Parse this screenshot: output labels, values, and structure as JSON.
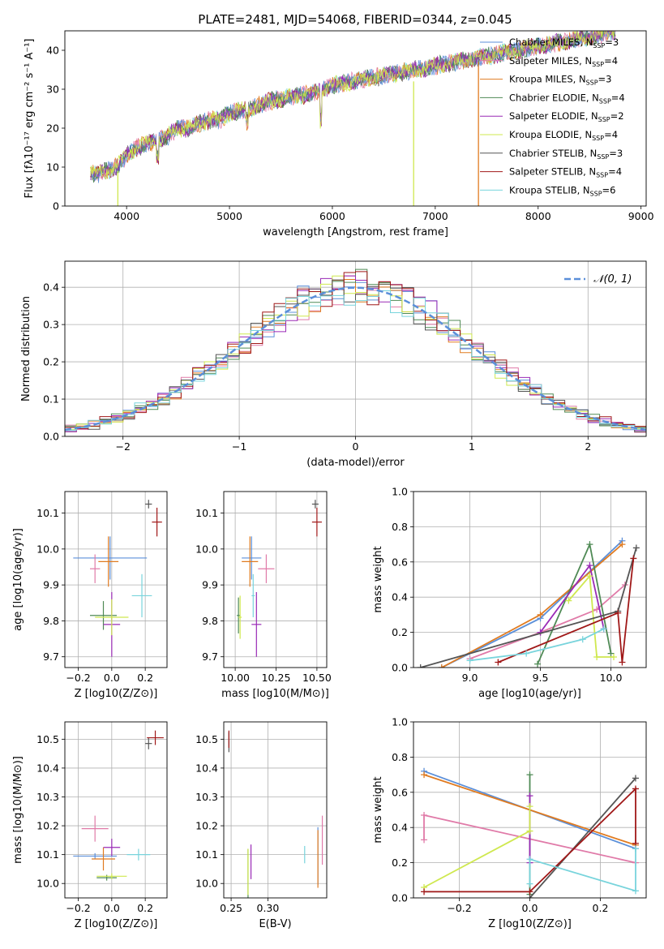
{
  "figure_title": "PLATE=2481, MJD=54068, FIBERID=0344, z=0.045",
  "colors": {
    "Chabrier MILES": "#5b8fd9",
    "Salpeter MILES": "#e07aa8",
    "Kroupa MILES": "#e07b20",
    "Chabrier ELODIE": "#4f8a55",
    "Salpeter ELODIE": "#9a2ab6",
    "Kroupa ELODIE": "#cfe84f",
    "Chabrier STELIB": "#555555",
    "Salpeter STELIB": "#a01818",
    "Kroupa STELIB": "#78d4dc"
  },
  "chart_data": [
    {
      "id": "spectrum",
      "type": "line",
      "xlabel": "wavelength [Angstrom, rest frame]",
      "ylabel": "Flux [fλ10⁻¹⁷ erg cm⁻² s⁻¹ A⁻¹]",
      "xlim": [
        3400,
        9050
      ],
      "ylim": [
        0,
        45
      ],
      "xticks": [
        4000,
        5000,
        6000,
        7000,
        8000,
        9000
      ],
      "yticks": [
        0,
        10,
        20,
        30,
        40
      ],
      "legend": "top-right",
      "spectrum_profile": {
        "x": [
          3650,
          3700,
          3800,
          3900,
          4000,
          4100,
          4200,
          4300,
          4400,
          4500,
          4600,
          4700,
          4800,
          4900,
          5000,
          5200,
          5400,
          5600,
          5800,
          6000,
          6200,
          6400,
          6600,
          6800,
          7000,
          7200,
          7400,
          7600,
          7800,
          8000,
          8200,
          8400,
          8600,
          8750
        ],
        "y": [
          9,
          8,
          9,
          10,
          13,
          15,
          16,
          17,
          18,
          20,
          20,
          21,
          22,
          22,
          24,
          25,
          27,
          28,
          29,
          31,
          32,
          33,
          34,
          35,
          36,
          37,
          38,
          39,
          40,
          41,
          42,
          43,
          44,
          45
        ]
      },
      "dropout_lines": [
        {
          "series": "Kroupa ELODIE",
          "x": 6790,
          "y_from": 32,
          "y_to": 0
        },
        {
          "series": "Kroupa MILES",
          "x": 7420,
          "y_from": 37,
          "y_to": 0
        },
        {
          "series": "Kroupa ELODIE",
          "x": 3915,
          "y_from": 9,
          "y_to": 0
        }
      ],
      "legend_entries": [
        {
          "name": "Chabrier MILES",
          "sub": "SSP",
          "n": "3"
        },
        {
          "name": "Salpeter MILES",
          "sub": "SSP",
          "n": "4"
        },
        {
          "name": "Kroupa MILES",
          "sub": "SSP",
          "n": "3"
        },
        {
          "name": "Chabrier ELODIE",
          "sub": "SSP",
          "n": "4"
        },
        {
          "name": "Salpeter ELODIE",
          "sub": "SSP",
          "n": "2"
        },
        {
          "name": "Kroupa ELODIE",
          "sub": "SSP",
          "n": "4"
        },
        {
          "name": "Chabrier STELIB",
          "sub": "SSP",
          "n": "3"
        },
        {
          "name": "Salpeter STELIB",
          "sub": "SSP",
          "n": "4"
        },
        {
          "name": "Kroupa STELIB",
          "sub": "SSP",
          "n": "6"
        }
      ]
    },
    {
      "id": "residuals",
      "type": "line",
      "xlabel": "(data-model)/error",
      "ylabel": "Normed distribution",
      "xlim": [
        -2.5,
        2.5
      ],
      "ylim": [
        0,
        0.47
      ],
      "xticks": [
        -2,
        -1,
        0,
        1,
        2
      ],
      "yticks": [
        0.0,
        0.1,
        0.2,
        0.3,
        0.4
      ],
      "grid": true,
      "legend": "top-right",
      "reference_curve": {
        "name": "N(0,1)",
        "mean": 0,
        "sigma": 1,
        "style": "dashed"
      },
      "histogram": {
        "bin_width": 0.1,
        "shape": "gaussian",
        "sigma": 1.0
      }
    },
    {
      "id": "age_vs_Z",
      "type": "scatter",
      "xlabel": "Z [log10(Z/Z⊙)]",
      "ylabel": "age  [log10(age/yr)]",
      "xlim": [
        -0.28,
        0.33
      ],
      "ylim": [
        9.67,
        10.16
      ],
      "xticks": [
        -0.2,
        0.0,
        0.2
      ],
      "yticks": [
        9.7,
        9.8,
        9.9,
        10.0,
        10.1
      ],
      "grid": true,
      "points": [
        {
          "series": "Chabrier MILES",
          "x": -0.01,
          "y": 9.975,
          "xerr": 0.22,
          "yerr": 0.06
        },
        {
          "series": "Salpeter MILES",
          "x": -0.1,
          "y": 9.945,
          "xerr": 0.03,
          "yerr": 0.04
        },
        {
          "series": "Kroupa MILES",
          "x": -0.02,
          "y": 9.965,
          "xerr": 0.06,
          "yerr": 0.07
        },
        {
          "series": "Chabrier ELODIE",
          "x": -0.05,
          "y": 9.815,
          "xerr": 0.08,
          "yerr": 0.04
        },
        {
          "series": "Salpeter ELODIE",
          "x": 0.0,
          "y": 9.79,
          "xerr": 0.05,
          "yerr": 0.09
        },
        {
          "series": "Kroupa ELODIE",
          "x": 0.0,
          "y": 9.81,
          "xerr": 0.1,
          "yerr": 0.05
        },
        {
          "series": "Chabrier STELIB",
          "x": 0.22,
          "y": 10.125,
          "xerr": 0.02,
          "yerr": 0.012
        },
        {
          "series": "Salpeter STELIB",
          "x": 0.27,
          "y": 10.075,
          "xerr": 0.03,
          "yerr": 0.04
        },
        {
          "series": "Kroupa STELIB",
          "x": 0.18,
          "y": 9.87,
          "xerr": 0.06,
          "yerr": 0.06
        }
      ]
    },
    {
      "id": "age_vs_mass",
      "type": "scatter",
      "xlabel": "mass [log10(M/M⊙)]",
      "ylabel": "",
      "xlim": [
        9.93,
        10.56
      ],
      "ylim": [
        9.67,
        10.16
      ],
      "xticks": [
        10.0,
        10.25,
        10.5
      ],
      "yticks": [
        9.7,
        9.8,
        9.9,
        10.0,
        10.1
      ],
      "grid": true,
      "points": [
        {
          "series": "Chabrier MILES",
          "x": 10.1,
          "y": 9.975,
          "xerr": 0.06,
          "yerr": 0.06
        },
        {
          "series": "Salpeter MILES",
          "x": 10.19,
          "y": 9.945,
          "xerr": 0.05,
          "yerr": 0.04
        },
        {
          "series": "Kroupa MILES",
          "x": 10.09,
          "y": 9.965,
          "xerr": 0.05,
          "yerr": 0.07
        },
        {
          "series": "Chabrier ELODIE",
          "x": 10.02,
          "y": 9.815,
          "xerr": 0.01,
          "yerr": 0.05
        },
        {
          "series": "Salpeter ELODIE",
          "x": 10.13,
          "y": 9.79,
          "xerr": 0.03,
          "yerr": 0.09
        },
        {
          "series": "Kroupa ELODIE",
          "x": 10.03,
          "y": 9.81,
          "xerr": 0.01,
          "yerr": 0.06
        },
        {
          "series": "Chabrier STELIB",
          "x": 10.49,
          "y": 10.125,
          "xerr": 0.02,
          "yerr": 0.012
        },
        {
          "series": "Salpeter STELIB",
          "x": 10.5,
          "y": 10.075,
          "xerr": 0.03,
          "yerr": 0.04
        },
        {
          "series": "Kroupa STELIB",
          "x": 10.11,
          "y": 9.87,
          "xerr": 0.01,
          "yerr": 0.06
        }
      ]
    },
    {
      "id": "mass_weight_vs_age",
      "type": "line",
      "xlabel": "age  [log10(age/yr)]",
      "ylabel": "mass weight",
      "xlim": [
        8.6,
        10.25
      ],
      "ylim": [
        0,
        1
      ],
      "xticks": [
        9.0,
        9.5,
        10.0
      ],
      "yticks": [
        0.0,
        0.2,
        0.4,
        0.6,
        0.8,
        1.0
      ],
      "grid": true,
      "series": [
        {
          "name": "Chabrier MILES",
          "x": [
            8.8,
            9.5,
            10.08
          ],
          "y": [
            0.0,
            0.28,
            0.72
          ]
        },
        {
          "name": "Kroupa MILES",
          "x": [
            8.8,
            9.5,
            10.08
          ],
          "y": [
            0.0,
            0.3,
            0.7
          ]
        },
        {
          "name": "Salpeter MILES",
          "x": [
            9.0,
            9.5,
            9.9,
            10.1
          ],
          "y": [
            0.05,
            0.2,
            0.33,
            0.47
          ]
        },
        {
          "name": "Chabrier ELODIE",
          "x": [
            9.48,
            9.85,
            10.0
          ],
          "y": [
            0.02,
            0.7,
            0.08
          ]
        },
        {
          "name": "Salpeter ELODIE",
          "x": [
            9.5,
            9.85,
            9.95
          ],
          "y": [
            0.2,
            0.58,
            0.22
          ]
        },
        {
          "name": "Kroupa ELODIE",
          "x": [
            9.7,
            9.85,
            9.9,
            10.02
          ],
          "y": [
            0.38,
            0.52,
            0.06,
            0.06
          ]
        },
        {
          "name": "Chabrier STELIB",
          "x": [
            8.65,
            10.05,
            10.18
          ],
          "y": [
            0.0,
            0.32,
            0.68
          ]
        },
        {
          "name": "Salpeter STELIB",
          "x": [
            9.2,
            10.05,
            10.08,
            10.16
          ],
          "y": [
            0.03,
            0.31,
            0.03,
            0.62
          ]
        },
        {
          "name": "Kroupa STELIB",
          "x": [
            9.0,
            9.4,
            9.8,
            9.95
          ],
          "y": [
            0.04,
            0.08,
            0.16,
            0.22
          ]
        }
      ]
    },
    {
      "id": "mass_vs_Z",
      "type": "scatter",
      "xlabel": "Z [log10(Z/Z⊙)]",
      "ylabel": "mass [log10(M/M⊙)]",
      "xlim": [
        -0.28,
        0.33
      ],
      "ylim": [
        9.95,
        10.56
      ],
      "xticks": [
        -0.2,
        0.0,
        0.2
      ],
      "yticks": [
        10.0,
        10.1,
        10.2,
        10.3,
        10.4,
        10.5
      ],
      "grid": true,
      "points": [
        {
          "series": "Chabrier MILES",
          "x": -0.1,
          "y": 10.095,
          "xerr": 0.13,
          "yerr": 0.01
        },
        {
          "series": "Salpeter MILES",
          "x": -0.1,
          "y": 10.19,
          "xerr": 0.08,
          "yerr": 0.045
        },
        {
          "series": "Kroupa MILES",
          "x": -0.05,
          "y": 10.085,
          "xerr": 0.07,
          "yerr": 0.04
        },
        {
          "series": "Chabrier ELODIE",
          "x": -0.03,
          "y": 10.02,
          "xerr": 0.06,
          "yerr": 0.01
        },
        {
          "series": "Salpeter ELODIE",
          "x": 0.0,
          "y": 10.125,
          "xerr": 0.05,
          "yerr": 0.03
        },
        {
          "series": "Kroupa ELODIE",
          "x": 0.0,
          "y": 10.025,
          "xerr": 0.09,
          "yerr": 0.01
        },
        {
          "series": "Chabrier STELIB",
          "x": 0.22,
          "y": 10.485,
          "xerr": 0.02,
          "yerr": 0.02
        },
        {
          "series": "Salpeter STELIB",
          "x": 0.26,
          "y": 10.505,
          "xerr": 0.05,
          "yerr": 0.025
        },
        {
          "series": "Kroupa STELIB",
          "x": 0.16,
          "y": 10.1,
          "xerr": 0.07,
          "yerr": 0.02
        }
      ]
    },
    {
      "id": "mass_vs_ebv",
      "type": "scatter",
      "xlabel": "E(B-V)",
      "ylabel": "",
      "xlim": [
        0.24,
        0.38
      ],
      "ylim": [
        9.95,
        10.56
      ],
      "xticks": [
        0.25,
        0.3
      ],
      "yticks": [
        10.0,
        10.1,
        10.2,
        10.3,
        10.4,
        10.5
      ],
      "grid": true,
      "points": [
        {
          "series": "Chabrier MILES",
          "x": 0.368,
          "y": 10.095,
          "xerr": 0.0,
          "yerr": 0.1
        },
        {
          "series": "Salpeter MILES",
          "x": 0.374,
          "y": 10.15,
          "xerr": 0.0,
          "yerr": 0.085
        },
        {
          "series": "Kroupa MILES",
          "x": 0.368,
          "y": 10.085,
          "xerr": 0.0,
          "yerr": 0.1
        },
        {
          "series": "Chabrier ELODIE",
          "x": 0.273,
          "y": 10.02,
          "xerr": 0.0,
          "yerr": 0.1
        },
        {
          "series": "Salpeter ELODIE",
          "x": 0.277,
          "y": 10.075,
          "xerr": 0.0,
          "yerr": 0.06
        },
        {
          "series": "Kroupa ELODIE",
          "x": 0.273,
          "y": 10.04,
          "xerr": 0.0,
          "yerr": 0.08
        },
        {
          "series": "Chabrier STELIB",
          "x": 0.247,
          "y": 10.49,
          "xerr": 0.0,
          "yerr": 0.035
        },
        {
          "series": "Salpeter STELIB",
          "x": 0.247,
          "y": 10.5,
          "xerr": 0.0,
          "yerr": 0.03
        },
        {
          "series": "Kroupa STELIB",
          "x": 0.35,
          "y": 10.1,
          "xerr": 0.0,
          "yerr": 0.03
        }
      ]
    },
    {
      "id": "mass_weight_vs_Z",
      "type": "line",
      "xlabel": "Z [log10(Z/Z⊙)]",
      "ylabel": "mass weight",
      "xlim": [
        -0.33,
        0.33
      ],
      "ylim": [
        0,
        1
      ],
      "xticks": [
        -0.2,
        0.0,
        0.2
      ],
      "yticks": [
        0.0,
        0.2,
        0.4,
        0.6,
        0.8,
        1.0
      ],
      "grid": true,
      "series": [
        {
          "name": "Chabrier MILES",
          "x": [
            -0.3,
            0.3
          ],
          "y": [
            0.72,
            0.28
          ]
        },
        {
          "name": "Kroupa MILES",
          "x": [
            -0.3,
            0.3
          ],
          "y": [
            0.7,
            0.3
          ]
        },
        {
          "name": "Salpeter MILES",
          "x": [
            -0.3,
            -0.3,
            0.3
          ],
          "y": [
            0.33,
            0.47,
            0.2
          ]
        },
        {
          "name": "Chabrier ELODIE",
          "x": [
            0.0,
            0.0
          ],
          "y": [
            0.02,
            0.7
          ]
        },
        {
          "name": "Salpeter ELODIE",
          "x": [
            0.0,
            0.0
          ],
          "y": [
            0.2,
            0.58
          ]
        },
        {
          "name": "Kroupa ELODIE",
          "x": [
            -0.3,
            0.0,
            0.0
          ],
          "y": [
            0.06,
            0.38,
            0.52
          ]
        },
        {
          "name": "Chabrier STELIB",
          "x": [
            0.0,
            0.3
          ],
          "y": [
            0.0,
            0.68
          ]
        },
        {
          "name": "Salpeter STELIB",
          "x": [
            -0.3,
            0.0,
            0.3,
            0.3
          ],
          "y": [
            0.035,
            0.035,
            0.62,
            0.31
          ]
        },
        {
          "name": "Kroupa STELIB",
          "x": [
            0.0,
            0.0,
            0.3,
            0.3
          ],
          "y": [
            0.08,
            0.22,
            0.04,
            0.28
          ]
        }
      ]
    }
  ]
}
